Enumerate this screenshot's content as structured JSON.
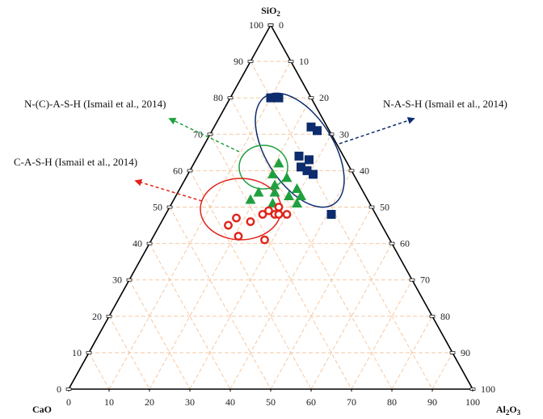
{
  "chart_data": {
    "type": "ternary-scatter",
    "vertices": {
      "top": {
        "label": "SiO",
        "sub": "2"
      },
      "left": {
        "label": "CaO",
        "sub": ""
      },
      "right": {
        "label": "Al",
        "sub": "2",
        "label2": "O",
        "sub2": "3"
      }
    },
    "ticks": [
      0,
      10,
      20,
      30,
      40,
      50,
      60,
      70,
      80,
      90,
      100
    ],
    "grid": true,
    "grid_color": "#f5c9a5",
    "series": [
      {
        "name": "N-A-S-H",
        "marker": "square",
        "color": "#0d2c6e",
        "points": [
          {
            "cao": 10,
            "sio2": 80,
            "al2o3": 10
          },
          {
            "cao": 8,
            "sio2": 80,
            "al2o3": 12
          },
          {
            "cao": 4,
            "sio2": 72,
            "al2o3": 24
          },
          {
            "cao": 3,
            "sio2": 71,
            "al2o3": 26
          },
          {
            "cao": 11,
            "sio2": 64,
            "al2o3": 25
          },
          {
            "cao": 9,
            "sio2": 63,
            "al2o3": 28
          },
          {
            "cao": 12,
            "sio2": 61,
            "al2o3": 27
          },
          {
            "cao": 11,
            "sio2": 60,
            "al2o3": 29
          },
          {
            "cao": 10,
            "sio2": 59,
            "al2o3": 31
          },
          {
            "cao": 11,
            "sio2": 48,
            "al2o3": 41
          }
        ]
      },
      {
        "name": "N-(C)-A-S-H",
        "marker": "triangle",
        "color": "#1fa040",
        "points": [
          {
            "cao": 17,
            "sio2": 62,
            "al2o3": 21
          },
          {
            "cao": 20,
            "sio2": 59,
            "al2o3": 21
          },
          {
            "cao": 17,
            "sio2": 58,
            "al2o3": 25
          },
          {
            "cao": 21,
            "sio2": 56,
            "al2o3": 23
          },
          {
            "cao": 16,
            "sio2": 55,
            "al2o3": 29
          },
          {
            "cao": 22,
            "sio2": 54,
            "al2o3": 24
          },
          {
            "cao": 26,
            "sio2": 54,
            "al2o3": 20
          },
          {
            "cao": 19,
            "sio2": 53,
            "al2o3": 28
          },
          {
            "cao": 16,
            "sio2": 53,
            "al2o3": 31
          },
          {
            "cao": 18,
            "sio2": 51,
            "al2o3": 31
          },
          {
            "cao": 24,
            "sio2": 51,
            "al2o3": 25
          },
          {
            "cao": 29,
            "sio2": 52,
            "al2o3": 19
          }
        ]
      },
      {
        "name": "C-A-S-H",
        "marker": "circle",
        "color": "#e0241a",
        "points": [
          {
            "cao": 35,
            "sio2": 47,
            "al2o3": 18
          },
          {
            "cao": 32,
            "sio2": 46,
            "al2o3": 22
          },
          {
            "cao": 28,
            "sio2": 48,
            "al2o3": 24
          },
          {
            "cao": 25,
            "sio2": 48,
            "al2o3": 27
          },
          {
            "cao": 24,
            "sio2": 48,
            "al2o3": 28
          },
          {
            "cao": 22,
            "sio2": 48,
            "al2o3": 30
          },
          {
            "cao": 26,
            "sio2": 49,
            "al2o3": 25
          },
          {
            "cao": 23,
            "sio2": 50,
            "al2o3": 27
          },
          {
            "cao": 38,
            "sio2": 45,
            "al2o3": 17
          },
          {
            "cao": 37,
            "sio2": 42,
            "al2o3": 21
          },
          {
            "cao": 31,
            "sio2": 41,
            "al2o3": 28
          }
        ]
      }
    ],
    "annotations": [
      {
        "text": "N-A-S-H (Ismail et al., 2014)",
        "color": "#0d2c6e"
      },
      {
        "text": "N-(C)-A-S-H (Ismail et al., 2014)",
        "color": "#1fa040"
      },
      {
        "text": "C-A-S-H (Ismail et al., 2014)",
        "color": "#e0241a"
      }
    ]
  }
}
